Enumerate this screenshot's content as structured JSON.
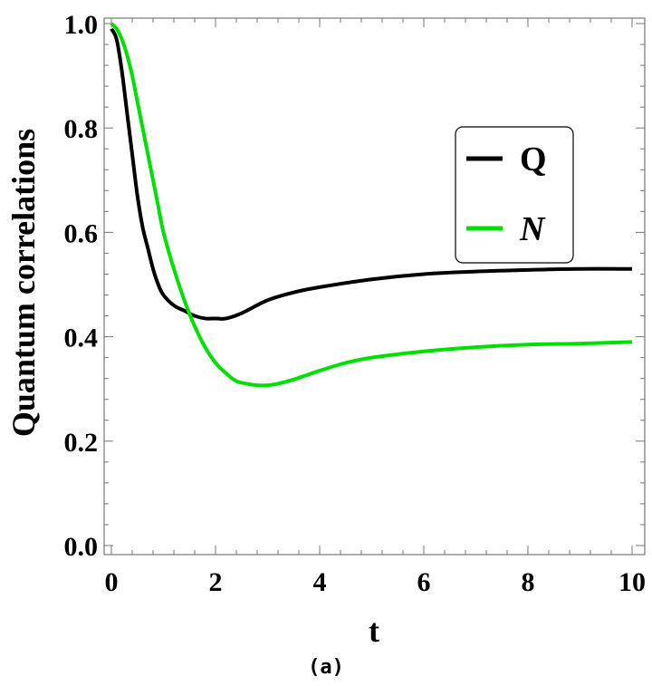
{
  "chart_data": {
    "type": "line",
    "title": "",
    "xlabel": "t",
    "ylabel": "Quantum correlations",
    "xlim": [
      0,
      10
    ],
    "ylim": [
      0,
      1.0
    ],
    "xticks": [
      0,
      2,
      4,
      6,
      8,
      10
    ],
    "xtick_labels": [
      "0",
      "2",
      "4",
      "6",
      "8",
      "10"
    ],
    "yticks": [
      0.0,
      0.2,
      0.4,
      0.6,
      0.8,
      1.0
    ],
    "ytick_labels": [
      "0.0",
      "0.2",
      "0.4",
      "0.6",
      "0.8",
      "1.0"
    ],
    "grid": false,
    "legend_position": "upper-right",
    "series": [
      {
        "name": "Q",
        "color": "#000000",
        "x": [
          0,
          0.1,
          0.2,
          0.3,
          0.4,
          0.5,
          0.6,
          0.7,
          0.8,
          0.9,
          1.0,
          1.2,
          1.4,
          1.6,
          1.8,
          2.0,
          2.2,
          2.5,
          3.0,
          3.5,
          4.0,
          5.0,
          6.0,
          7.0,
          8.0,
          9.0,
          10.0
        ],
        "y": [
          0.99,
          0.97,
          0.91,
          0.83,
          0.75,
          0.67,
          0.61,
          0.57,
          0.53,
          0.5,
          0.48,
          0.46,
          0.45,
          0.44,
          0.435,
          0.435,
          0.435,
          0.445,
          0.47,
          0.485,
          0.495,
          0.51,
          0.52,
          0.525,
          0.528,
          0.53,
          0.53
        ]
      },
      {
        "name": "N",
        "color": "#00e000",
        "x": [
          0,
          0.1,
          0.2,
          0.3,
          0.4,
          0.5,
          0.6,
          0.7,
          0.8,
          0.9,
          1.0,
          1.2,
          1.4,
          1.6,
          1.8,
          2.0,
          2.2,
          2.4,
          2.6,
          2.8,
          3.0,
          3.2,
          3.5,
          4.0,
          4.5,
          5.0,
          6.0,
          7.0,
          8.0,
          9.0,
          10.0
        ],
        "y": [
          1.0,
          0.99,
          0.97,
          0.94,
          0.9,
          0.85,
          0.8,
          0.75,
          0.7,
          0.65,
          0.6,
          0.53,
          0.47,
          0.42,
          0.38,
          0.35,
          0.33,
          0.315,
          0.31,
          0.307,
          0.307,
          0.31,
          0.318,
          0.335,
          0.35,
          0.36,
          0.372,
          0.38,
          0.385,
          0.387,
          0.39
        ]
      }
    ]
  },
  "caption": "(a)"
}
